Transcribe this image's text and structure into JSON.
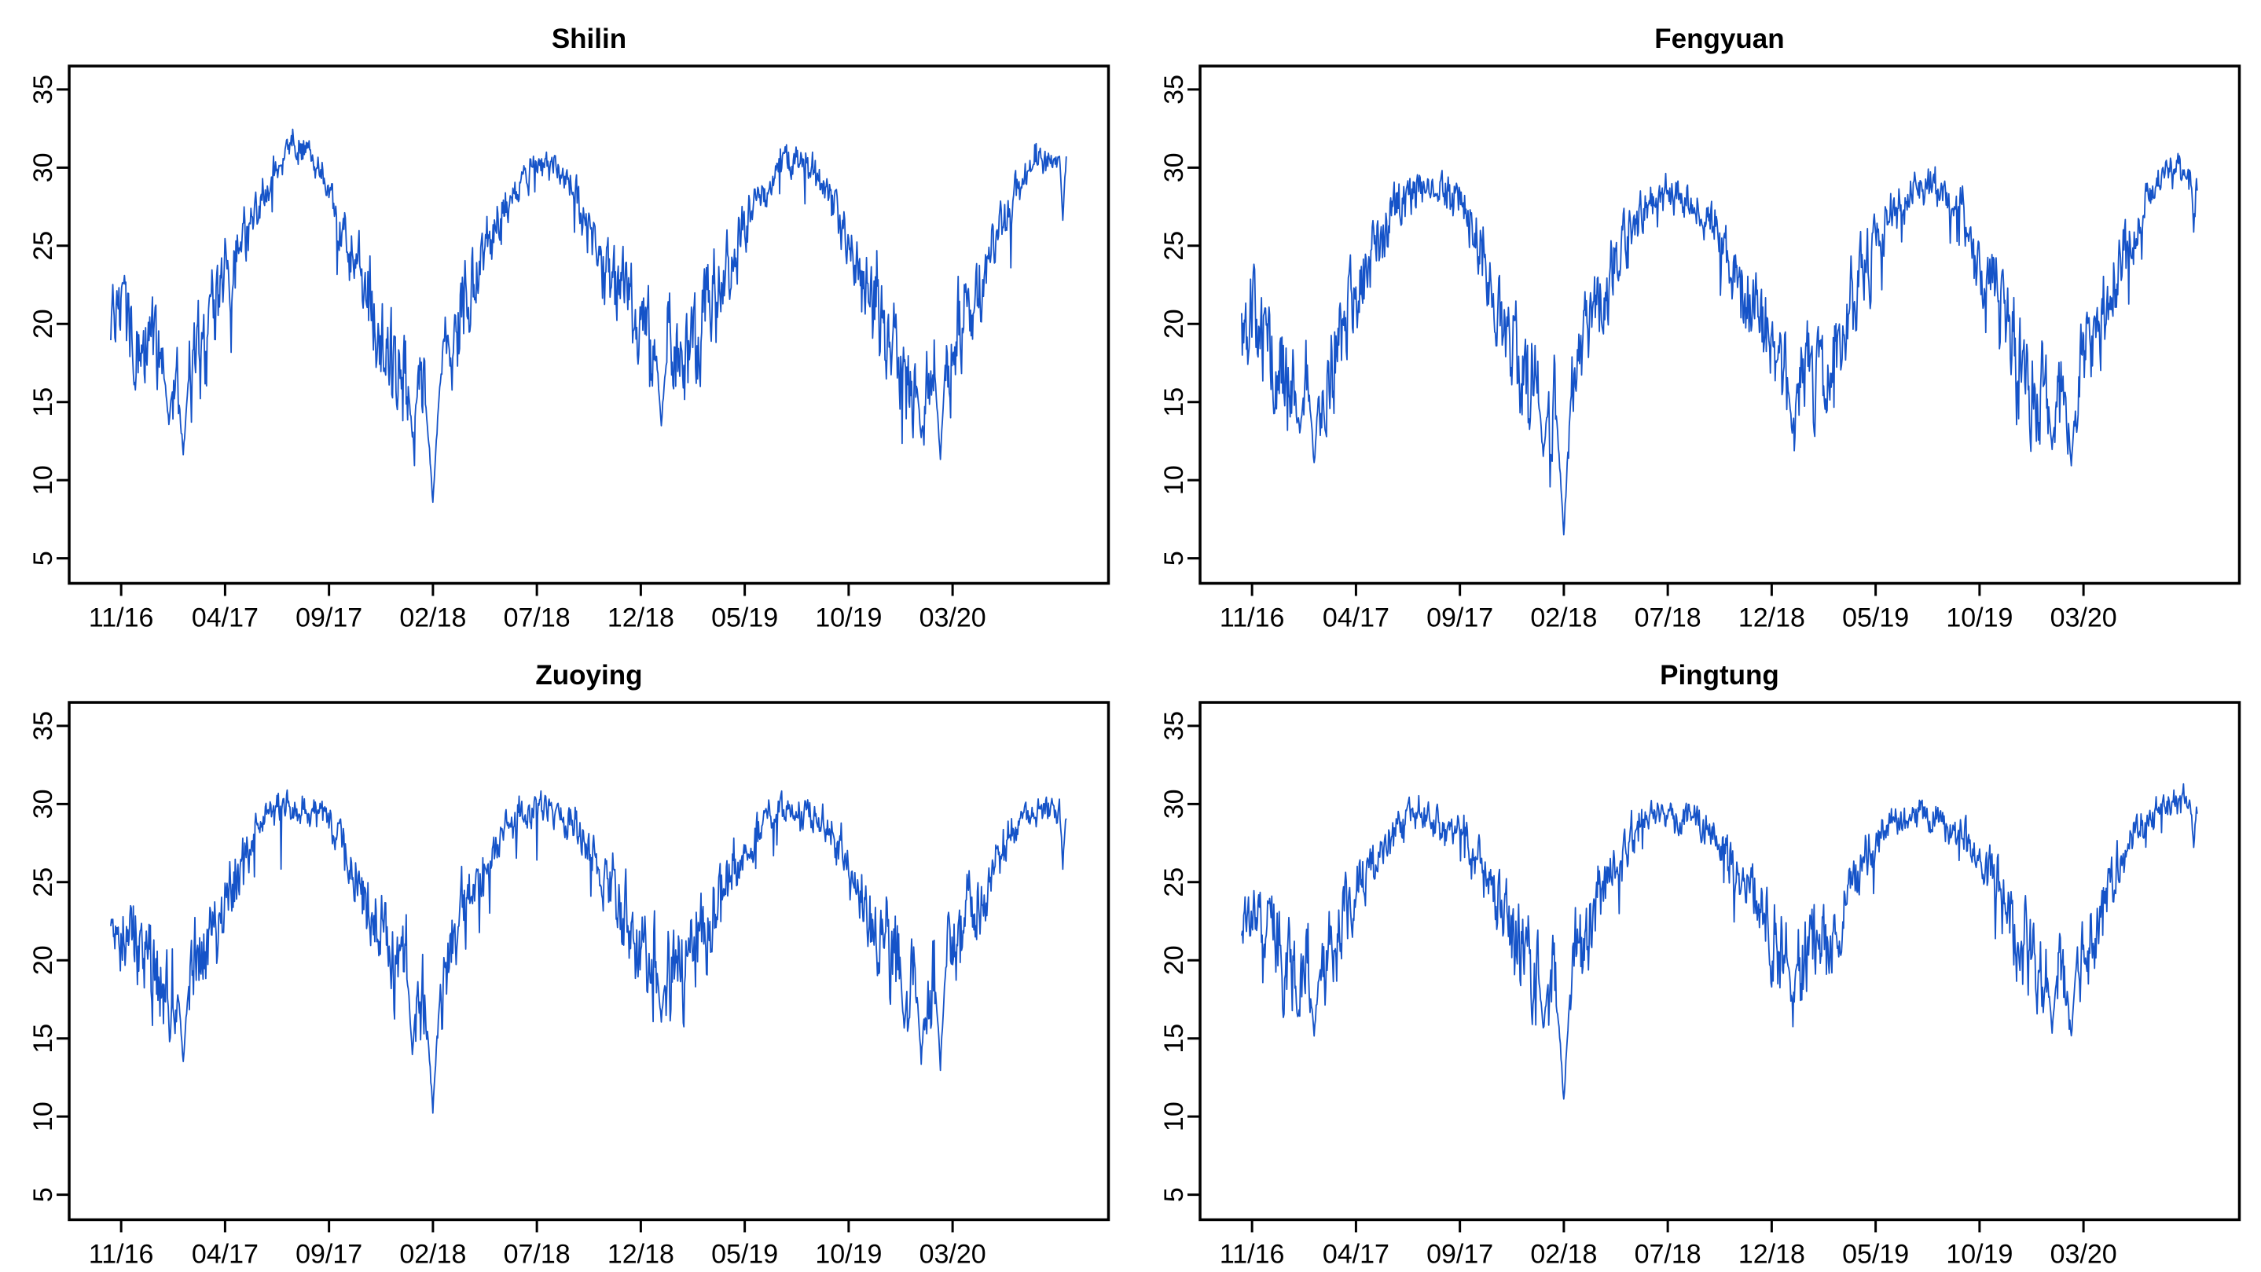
{
  "page": {
    "background": "#ffffff",
    "axis_color": "#000000"
  },
  "chart_data": [
    {
      "type": "line",
      "title": "Shilin",
      "x_ticks": [
        "11/16",
        "04/17",
        "09/17",
        "02/18",
        "07/18",
        "12/18",
        "05/19",
        "10/19",
        "03/20"
      ],
      "x_tick_month_index": [
        0,
        5,
        10,
        15,
        20,
        25,
        30,
        35,
        40
      ],
      "y_ticks": [
        5,
        10,
        15,
        20,
        25,
        30,
        35
      ],
      "ylim": [
        3.4,
        36.5
      ],
      "months_start": "2016-11",
      "months_count": 46,
      "monthly_mean": [
        21.5,
        18.5,
        17.0,
        16.5,
        18.0,
        22.5,
        25.5,
        28.5,
        31.6,
        31.2,
        28.5,
        24.5,
        21.5,
        18.0,
        16.0,
        15.0,
        19.5,
        23.0,
        26.5,
        28.5,
        30.5,
        30.0,
        28.0,
        24.5,
        22.0,
        19.5,
        18.0,
        18.0,
        20.0,
        23.5,
        26.0,
        28.5,
        30.6,
        30.4,
        28.5,
        25.0,
        22.0,
        18.5,
        16.5,
        16.5,
        19.0,
        21.0,
        25.0,
        28.0,
        30.8,
        30.5
      ],
      "cold_dips": [
        [
          85,
          8,
          13.5
        ],
        [
          106,
          9,
          11.5
        ],
        [
          441,
          8,
          12.8
        ],
        [
          471,
          12,
          8.4
        ],
        [
          805,
          9,
          13.6
        ],
        [
          1185,
          8,
          12.5
        ],
        [
          1213,
          9,
          11.2
        ],
        [
          1392,
          5,
          26.8
        ]
      ],
      "line_color": "#1553c8",
      "grid": false,
      "box": true,
      "seed": 7
    },
    {
      "type": "line",
      "title": "Fengyuan",
      "x_ticks": [
        "11/16",
        "04/17",
        "09/17",
        "02/18",
        "07/18",
        "12/18",
        "05/19",
        "10/19",
        "03/20"
      ],
      "x_tick_month_index": [
        0,
        5,
        10,
        15,
        20,
        25,
        30,
        35,
        40
      ],
      "y_ticks": [
        5,
        10,
        15,
        20,
        25,
        30,
        35
      ],
      "ylim": [
        3.4,
        36.5
      ],
      "months_start": "2016-11",
      "months_count": 46,
      "monthly_mean": [
        20.5,
        17.5,
        16.0,
        16.0,
        17.5,
        22.0,
        25.0,
        27.5,
        28.8,
        28.8,
        28.0,
        25.0,
        21.0,
        17.0,
        15.0,
        14.0,
        19.0,
        22.5,
        25.5,
        27.5,
        28.5,
        28.0,
        27.0,
        23.5,
        21.0,
        18.5,
        16.5,
        16.5,
        18.5,
        22.0,
        25.0,
        27.5,
        28.6,
        28.6,
        27.5,
        24.0,
        21.0,
        17.5,
        15.5,
        15.5,
        17.5,
        20.5,
        24.5,
        27.5,
        29.8,
        29.6
      ],
      "cold_dips": [
        [
          85,
          8,
          13.0
        ],
        [
          106,
          9,
          11.0
        ],
        [
          441,
          8,
          11.5
        ],
        [
          471,
          12,
          6.4
        ],
        [
          805,
          9,
          13.0
        ],
        [
          1185,
          8,
          12.0
        ],
        [
          1213,
          9,
          10.8
        ],
        [
          1392,
          5,
          26.0
        ]
      ],
      "line_color": "#1553c8",
      "grid": false,
      "box": true,
      "seed": 13
    },
    {
      "type": "line",
      "title": "Zuoying",
      "x_ticks": [
        "11/16",
        "04/17",
        "09/17",
        "02/18",
        "07/18",
        "12/18",
        "05/19",
        "10/19",
        "03/20"
      ],
      "x_tick_month_index": [
        0,
        5,
        10,
        15,
        20,
        25,
        30,
        35,
        40
      ],
      "y_ticks": [
        5,
        10,
        15,
        20,
        25,
        30,
        35
      ],
      "ylim": [
        3.4,
        36.5
      ],
      "months_start": "2016-11",
      "months_count": 46,
      "monthly_mean": [
        22.5,
        20.0,
        19.0,
        18.0,
        20.5,
        23.5,
        26.5,
        28.8,
        29.8,
        29.5,
        29.0,
        26.5,
        23.0,
        20.5,
        18.5,
        17.0,
        21.5,
        24.5,
        27.5,
        29.0,
        29.8,
        29.3,
        28.5,
        26.0,
        23.5,
        21.5,
        19.5,
        19.5,
        21.5,
        24.5,
        27.0,
        29.3,
        29.8,
        29.3,
        28.5,
        26.0,
        23.0,
        20.5,
        18.5,
        18.5,
        20.5,
        23.0,
        26.5,
        28.5,
        29.8,
        29.6
      ],
      "cold_dips": [
        [
          106,
          9,
          13.5
        ],
        [
          441,
          8,
          14.0
        ],
        [
          471,
          12,
          10.2
        ],
        [
          805,
          9,
          16.2
        ],
        [
          1160,
          6,
          15.5
        ],
        [
          1185,
          8,
          13.5
        ],
        [
          1213,
          9,
          13.2
        ],
        [
          1392,
          5,
          26.0
        ]
      ],
      "line_color": "#1553c8",
      "grid": false,
      "box": true,
      "seed": 21
    },
    {
      "type": "line",
      "title": "Pingtung",
      "x_ticks": [
        "11/16",
        "04/17",
        "09/17",
        "02/18",
        "07/18",
        "12/18",
        "05/19",
        "10/19",
        "03/20"
      ],
      "x_tick_month_index": [
        0,
        5,
        10,
        15,
        20,
        25,
        30,
        35,
        40
      ],
      "y_ticks": [
        5,
        10,
        15,
        20,
        25,
        30,
        35
      ],
      "ylim": [
        3.4,
        36.5
      ],
      "months_start": "2016-11",
      "months_count": 46,
      "monthly_mean": [
        23.0,
        20.5,
        19.5,
        19.0,
        21.0,
        24.0,
        26.5,
        28.8,
        29.3,
        29.0,
        28.5,
        26.5,
        23.5,
        20.5,
        19.0,
        17.5,
        21.5,
        24.5,
        27.5,
        29.0,
        29.5,
        29.0,
        28.5,
        26.0,
        24.0,
        22.0,
        20.0,
        20.0,
        22.0,
        25.0,
        27.5,
        29.0,
        29.5,
        29.0,
        28.5,
        26.5,
        23.5,
        21.0,
        19.0,
        19.0,
        21.0,
        23.5,
        27.0,
        29.0,
        30.0,
        30.0
      ],
      "cold_dips": [
        [
          106,
          9,
          15.2
        ],
        [
          441,
          8,
          15.5
        ],
        [
          471,
          12,
          11.0
        ],
        [
          805,
          9,
          17.5
        ],
        [
          1185,
          8,
          15.5
        ],
        [
          1213,
          9,
          15.0
        ],
        [
          1392,
          5,
          27.2
        ]
      ],
      "line_color": "#1553c8",
      "grid": false,
      "box": true,
      "seed": 29
    }
  ]
}
